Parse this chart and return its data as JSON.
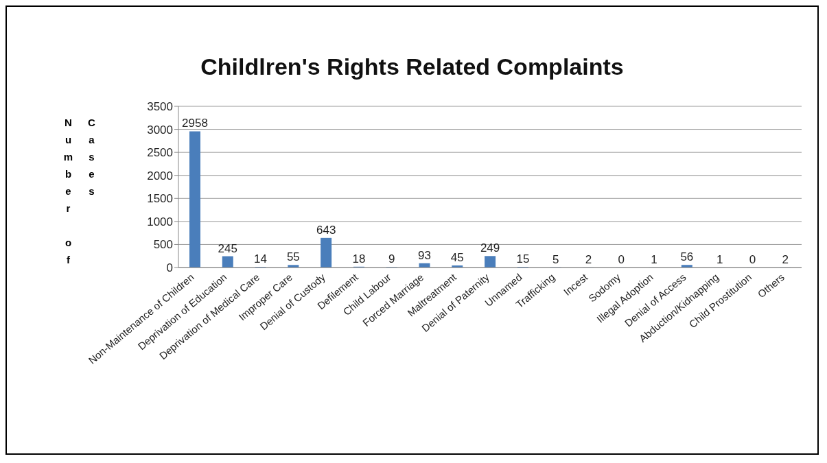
{
  "chart_data": {
    "type": "bar",
    "title": "Childlren's Rights Related Complaints",
    "ylabel": "Number of Cases",
    "categories": [
      "Non-Maintenance of Children",
      "Deprivation of Education",
      "Deprivation of Medical Care",
      "Improper Care",
      "Denial of Custody",
      "Defilement",
      "Child Labour",
      "Forced Marriage",
      "Maltreatment",
      "Denial of Paternity",
      "Unnamed",
      "Trafficking",
      "Incest",
      "Sodomy",
      "Illegal Adoption",
      "Denial of Access",
      "Abduction/Kidnapping",
      "Child Prostitution",
      "Others"
    ],
    "values": [
      2958,
      245,
      14,
      55,
      643,
      18,
      9,
      93,
      45,
      249,
      15,
      5,
      2,
      0,
      1,
      56,
      1,
      0,
      2
    ],
    "color": "#4a7ebb",
    "ylim": [
      0,
      3500
    ],
    "yticks": [
      0,
      500,
      1000,
      1500,
      2000,
      2500,
      3000,
      3500
    ],
    "grid": "y",
    "data_labels": true,
    "legend": false
  }
}
